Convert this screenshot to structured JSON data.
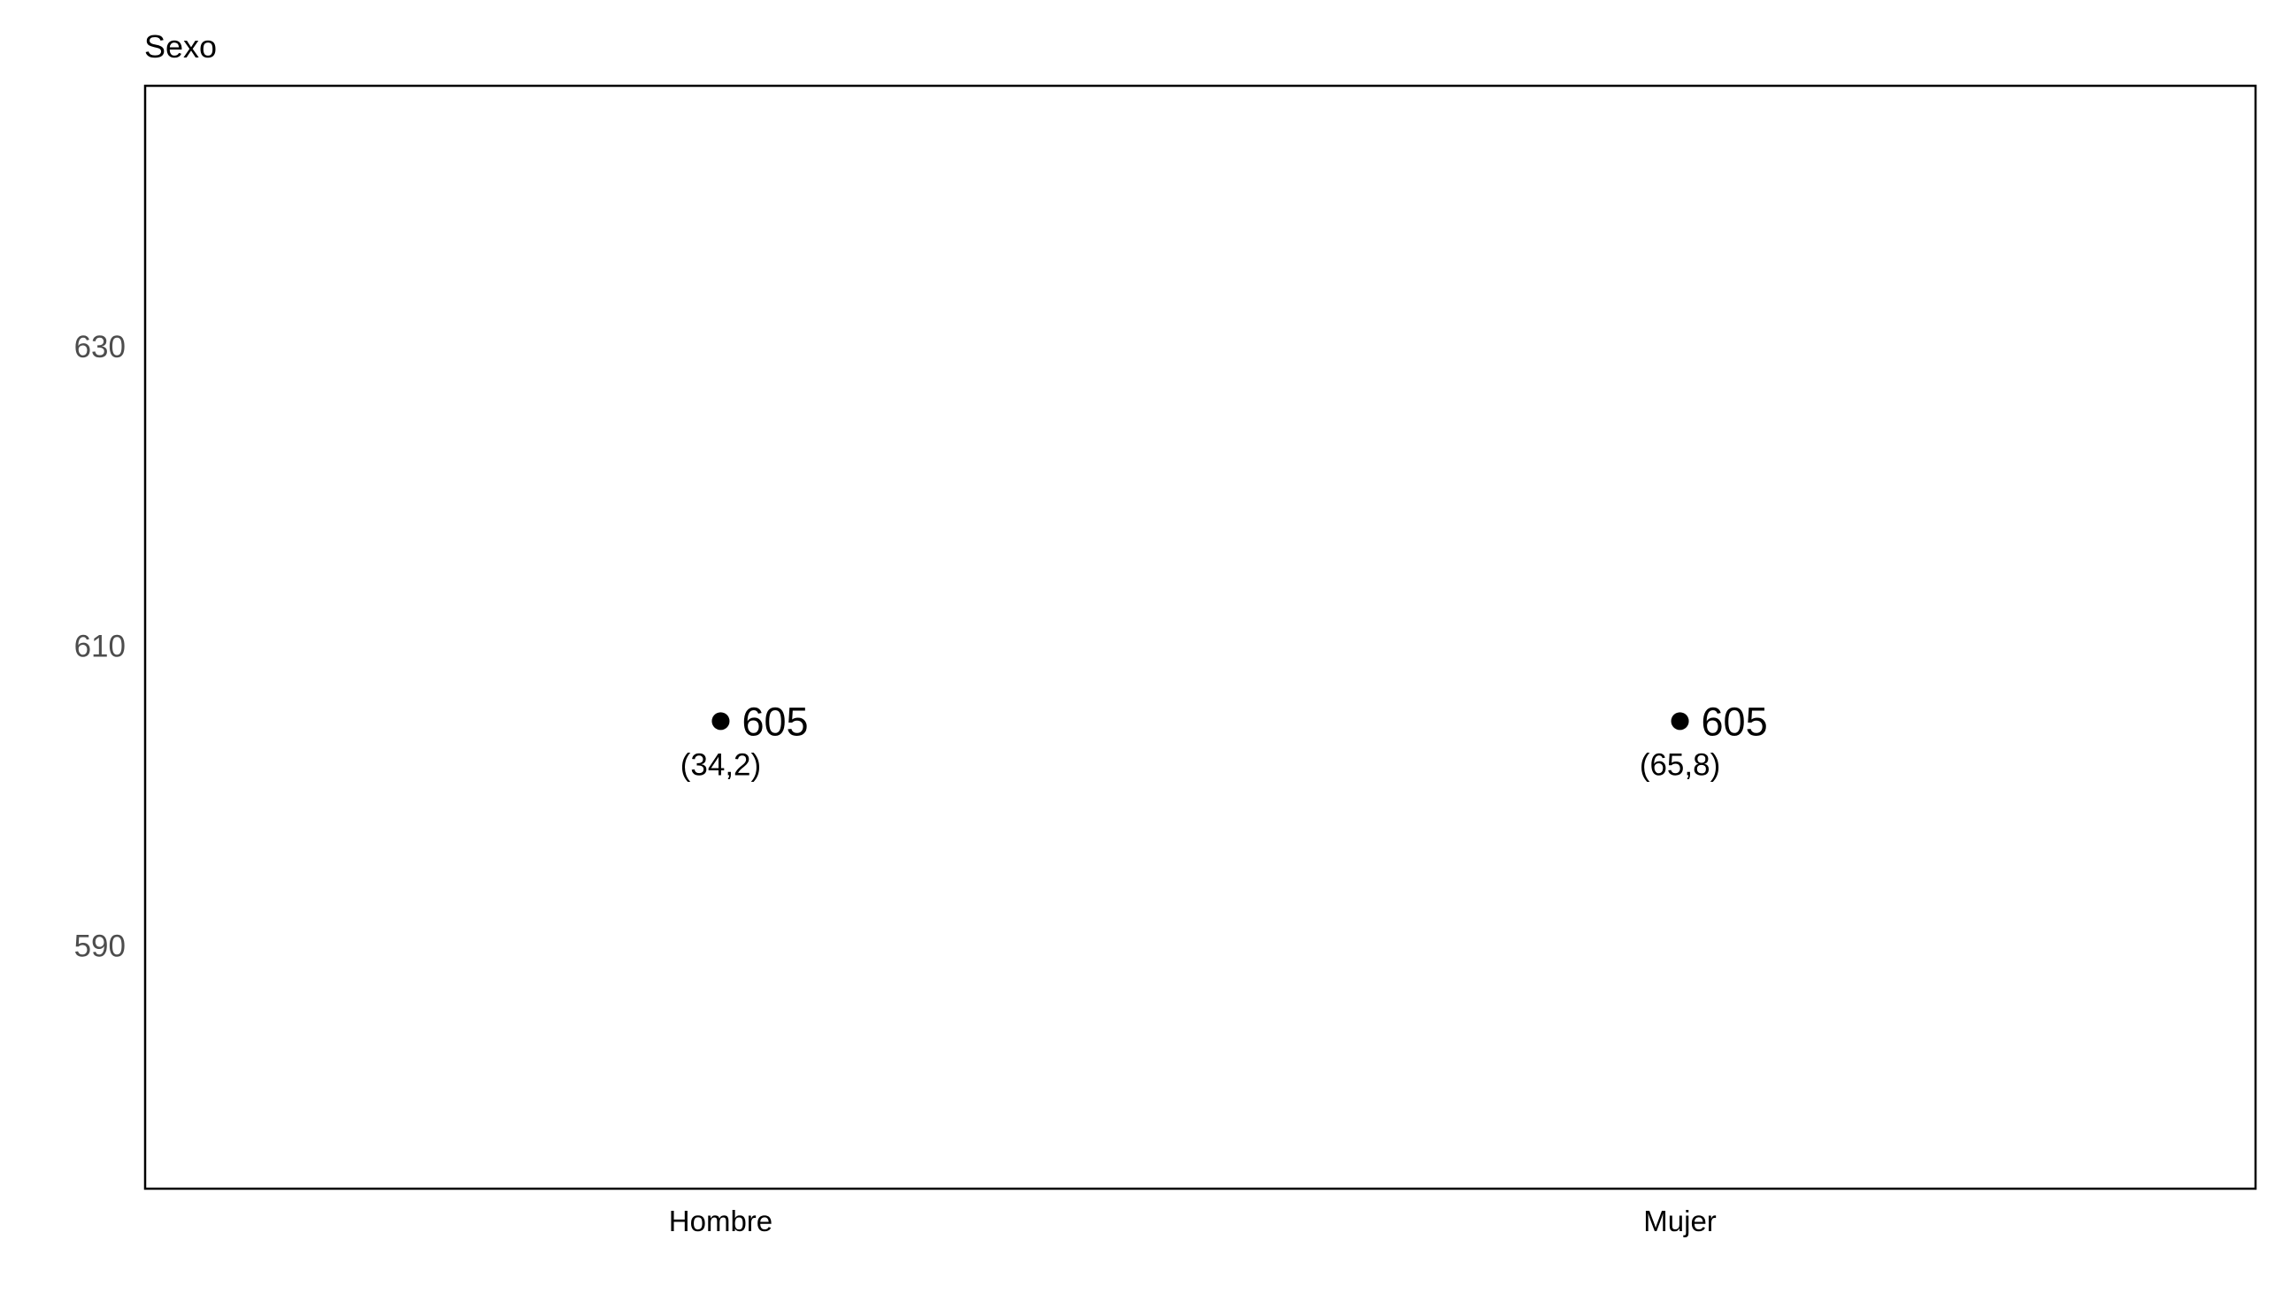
{
  "chart_data": {
    "type": "scatter",
    "title": "Sexo",
    "xlabel": "",
    "ylabel": "",
    "categories": [
      "Hombre",
      "Mujer"
    ],
    "values": [
      605,
      605
    ],
    "value_labels": [
      "605",
      "605"
    ],
    "sub_labels": [
      "(34,2)",
      "(65,8)"
    ],
    "yticks": [
      "590",
      "610",
      "630"
    ],
    "ytick_values": [
      590,
      610,
      630
    ],
    "ylim": [
      573.8,
      647.4
    ],
    "grid": false,
    "legend": "none",
    "colors": {
      "point": "#000000",
      "panel_border": "#000000",
      "axis_text": "#4d4d4d"
    }
  }
}
